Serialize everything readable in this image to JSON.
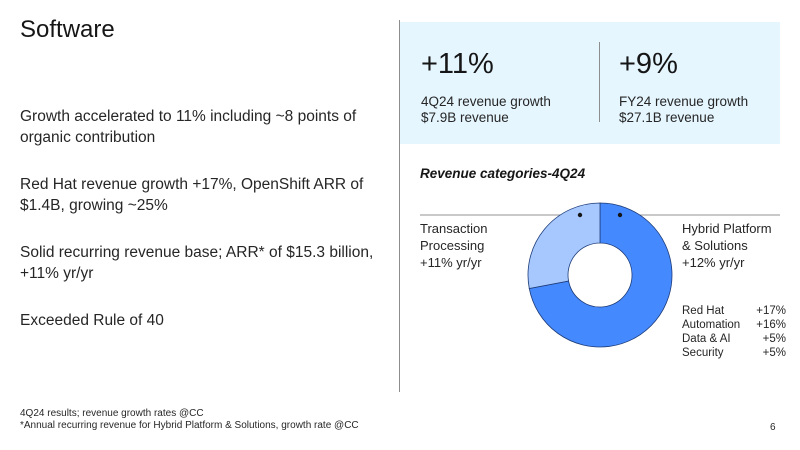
{
  "title": "Software",
  "bullets": [
    "Growth accelerated to 11% including ~8 points of organic contribution",
    "Red Hat revenue growth +17%, OpenShift ARR of $1.4B, growing ~25%",
    "Solid recurring revenue base; ARR* of $15.3 billion, +11% yr/yr",
    "Exceeded Rule of 40"
  ],
  "kpis": [
    {
      "value": "+11%",
      "label": "4Q24 revenue growth",
      "sub": "$7.9B revenue"
    },
    {
      "value": "+9%",
      "label": "FY24 revenue growth",
      "sub": "$27.1B revenue"
    }
  ],
  "chart_data": {
    "type": "pie",
    "title": "Revenue categories-4Q24",
    "slices": [
      {
        "name": "Hybrid Platform & Solutions",
        "growth": "+12% yr/yr",
        "share": 0.72,
        "color": "#4589ff"
      },
      {
        "name": "Transaction Processing",
        "growth": "+11% yr/yr",
        "share": 0.28,
        "color": "#a6c8ff"
      }
    ],
    "labels": {
      "transaction": {
        "line1": "Transaction",
        "line2": "Processing",
        "line3": "+11% yr/yr"
      },
      "hybrid": {
        "line1": "Hybrid Platform",
        "line2": "& Solutions",
        "line3": "+12% yr/yr"
      }
    },
    "breakdown": [
      {
        "name": "Red Hat",
        "value": "+17%"
      },
      {
        "name": "Automation",
        "value": "+16%"
      },
      {
        "name": "Data & AI",
        "value": "+5%"
      },
      {
        "name": "Security",
        "value": "+5%"
      }
    ]
  },
  "footnotes": [
    "4Q24 results; revenue growth rates @CC",
    "*Annual recurring revenue for Hybrid Platform & Solutions, growth rate @CC"
  ],
  "page_number": "6",
  "colors": {
    "accent_bg": "#e5f6ff",
    "hybrid": "#4589ff",
    "transaction": "#a6c8ff"
  }
}
